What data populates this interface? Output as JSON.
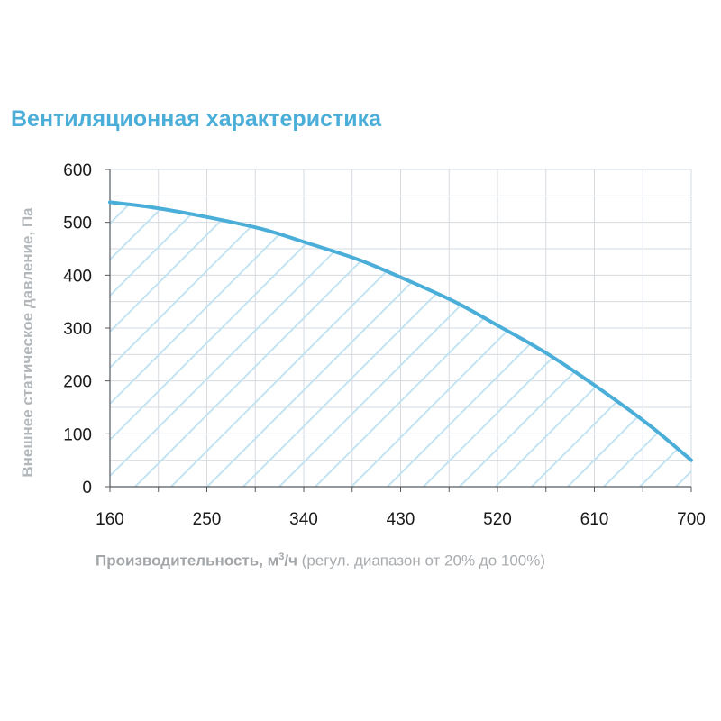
{
  "chart_data": {
    "type": "area",
    "title": "Вентиляционная характеристика",
    "ylabel": "Внешнее статическое давление, Па",
    "xlabel": {
      "main": "Производительность, м",
      "sup": "3",
      "unit_tail": "/ч",
      "note": " (регул. диапазон от 20% до 100%)"
    },
    "xlim": [
      160,
      700
    ],
    "ylim": [
      0,
      600
    ],
    "x_ticks": [
      160,
      250,
      340,
      430,
      520,
      610,
      700
    ],
    "y_ticks": [
      0,
      100,
      200,
      300,
      400,
      500,
      600
    ],
    "x_minor_step": 45,
    "y_minor_step": 50,
    "grid": true,
    "hatched_fill": true,
    "series": [
      {
        "x": [
          160,
          200,
          250,
          300,
          340,
          390,
          430,
          480,
          520,
          565,
          610,
          660,
          700
        ],
        "y": [
          538,
          528,
          510,
          488,
          463,
          430,
          396,
          350,
          305,
          253,
          192,
          118,
          50
        ]
      }
    ],
    "colors": {
      "curve": "#4aaed9",
      "hatch": "#c3e3f2",
      "grid": "#d6dbe0",
      "axis": "#555a5e"
    }
  }
}
